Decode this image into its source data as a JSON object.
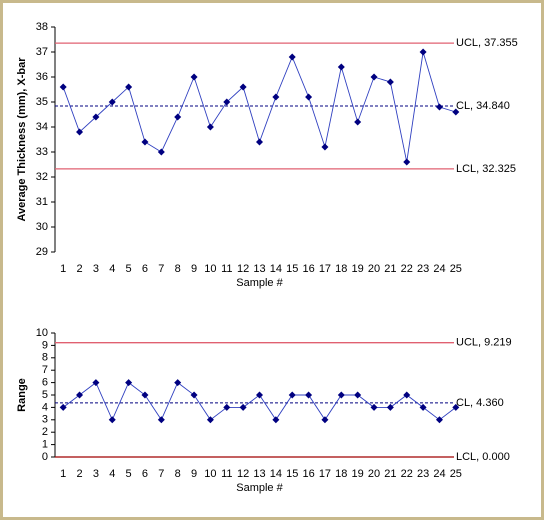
{
  "chart_data": [
    {
      "type": "line",
      "ylabel": "Average Thickness (mm), X-bar",
      "xlabel": "Sample #",
      "categories": [
        "1",
        "2",
        "3",
        "4",
        "5",
        "6",
        "7",
        "8",
        "9",
        "10",
        "11",
        "12",
        "13",
        "14",
        "15",
        "16",
        "17",
        "18",
        "19",
        "20",
        "21",
        "22",
        "23",
        "24",
        "25"
      ],
      "series": [
        {
          "color": "#000080",
          "values": [
            35.6,
            33.8,
            34.4,
            35.0,
            35.6,
            33.4,
            33.0,
            34.4,
            36.0,
            34.0,
            35.0,
            35.6,
            33.4,
            35.2,
            36.8,
            35.2,
            33.2,
            36.4,
            34.2,
            36.0,
            35.8,
            32.6,
            37.0,
            34.8,
            34.6
          ]
        }
      ],
      "ylim": [
        29,
        38
      ],
      "yticks": [
        29,
        30,
        31,
        32,
        33,
        34,
        35,
        36,
        37,
        38
      ],
      "lines": [
        {
          "label": "UCL, 37.355",
          "value": 37.355,
          "color": "#e06070",
          "style": "solid"
        },
        {
          "label": "CL, 34.840",
          "value": 34.84,
          "color": "#000080",
          "style": "dashed"
        },
        {
          "label": "LCL, 32.325",
          "value": 32.325,
          "color": "#e06070",
          "style": "solid"
        }
      ]
    },
    {
      "type": "line",
      "ylabel": "Range",
      "xlabel": "Sample #",
      "categories": [
        "1",
        "2",
        "3",
        "4",
        "5",
        "6",
        "7",
        "8",
        "9",
        "10",
        "11",
        "12",
        "13",
        "14",
        "15",
        "16",
        "17",
        "18",
        "19",
        "20",
        "21",
        "22",
        "23",
        "24",
        "25"
      ],
      "series": [
        {
          "color": "#000080",
          "values": [
            4,
            5,
            6,
            3,
            6,
            5,
            3,
            6,
            5,
            3,
            4,
            4,
            5,
            3,
            5,
            5,
            3,
            5,
            5,
            4,
            4,
            5,
            4,
            3,
            4
          ]
        }
      ],
      "ylim": [
        0,
        10
      ],
      "yticks": [
        0,
        1,
        2,
        3,
        4,
        5,
        6,
        7,
        8,
        9,
        10
      ],
      "lines": [
        {
          "label": "UCL, 9.219",
          "value": 9.219,
          "color": "#e06070",
          "style": "solid"
        },
        {
          "label": "CL, 4.360",
          "value": 4.36,
          "color": "#000080",
          "style": "dashed"
        },
        {
          "label": "LCL, 0.000",
          "value": 0,
          "color": "#a00000",
          "style": "solid"
        }
      ]
    }
  ]
}
